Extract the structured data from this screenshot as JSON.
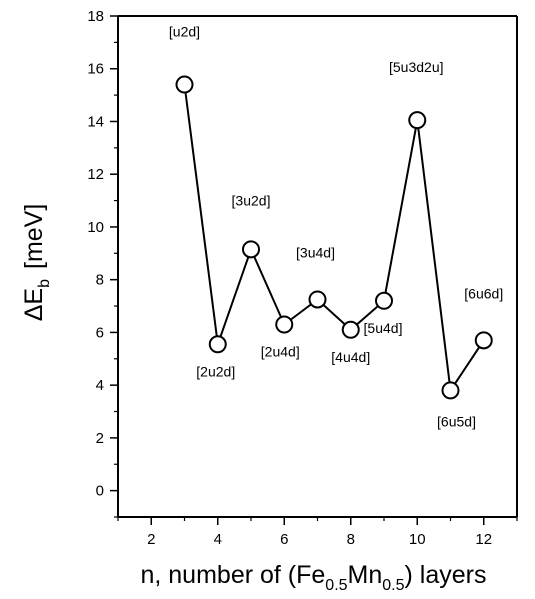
{
  "chart_data": {
    "type": "line",
    "title": "",
    "xlabel": {
      "prefix": "n, number of (Fe",
      "sub1": "0.5",
      "mid": "Mn",
      "sub2": "0.5",
      "suffix": ") layers"
    },
    "ylabel": {
      "main": "ΔE",
      "sub": "b",
      "suffix": "[meV]"
    },
    "xlim": [
      1,
      13
    ],
    "ylim": [
      -1,
      18
    ],
    "x_ticks": [
      "2",
      "4",
      "6",
      "8",
      "10",
      "12"
    ],
    "y_ticks": [
      "0",
      "2",
      "4",
      "6",
      "8",
      "10",
      "12",
      "14",
      "16",
      "18"
    ],
    "grid": false,
    "marker": "open-circle",
    "series": [
      {
        "x": [
          3,
          4,
          5,
          6,
          7,
          8,
          9,
          10,
          11,
          12
        ],
        "y": [
          15.4,
          5.55,
          9.15,
          6.3,
          7.25,
          6.1,
          7.2,
          14.05,
          3.8,
          5.7
        ],
        "labels": [
          "[u2d]",
          "[2u2d]",
          "[3u2d]",
          "[2u4d]",
          "[3u4d]",
          "[4u4d]",
          "[5u4d]",
          "[5u3d2u]",
          "[6u5d]",
          "[6u6d]"
        ]
      }
    ]
  }
}
